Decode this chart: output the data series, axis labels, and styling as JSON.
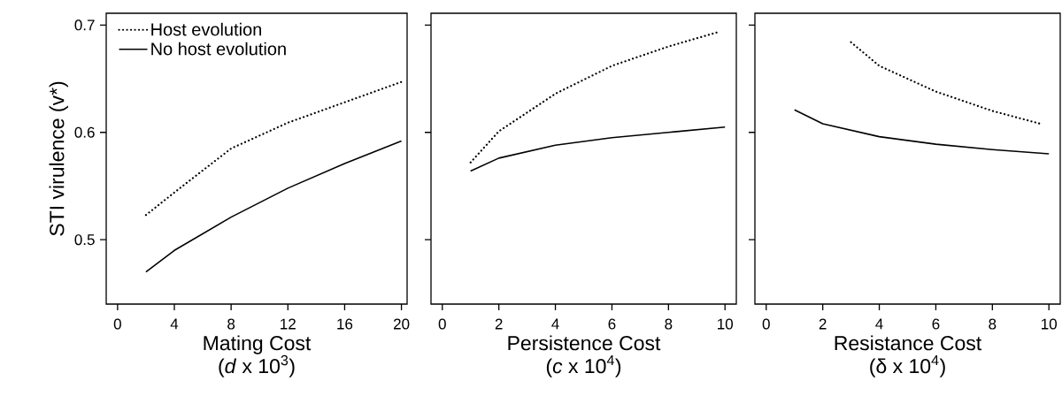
{
  "chart_data": [
    {
      "type": "line",
      "xlabel": "Mating Cost (*d* x 10$^{3}$)",
      "ylabel": "STI virulence (v*)",
      "xlim": [
        -0.8,
        20.4
      ],
      "ylim": [
        0.44,
        0.711
      ],
      "xticks": [
        0,
        4,
        8,
        12,
        16,
        20
      ],
      "yticks": [
        0.5,
        0.6,
        0.7
      ],
      "legend": "top left",
      "grid": false,
      "series": [
        {
          "name": "Host evolution",
          "color": "#000000",
          "line_style": "dotted",
          "x": [
            2,
            4,
            8,
            12,
            16,
            20
          ],
          "values": [
            0.523,
            0.544,
            0.585,
            0.609,
            0.628,
            0.647
          ]
        },
        {
          "name": "No host evolution",
          "color": "#000000",
          "line_style": "solid",
          "x": [
            2,
            4,
            8,
            12,
            16,
            20
          ],
          "values": [
            0.47,
            0.49,
            0.521,
            0.548,
            0.571,
            0.592
          ]
        }
      ]
    },
    {
      "type": "line",
      "xlabel": "Persistence Cost (*c* x 10$^{4}$)",
      "xlim": [
        -0.4,
        10.4
      ],
      "ylim": [
        0.44,
        0.711
      ],
      "xticks": [
        0,
        2,
        4,
        6,
        8,
        10
      ],
      "yticks": [
        {
          "value": 0.5,
          "label": null
        },
        {
          "value": 0.6,
          "label": null
        },
        {
          "value": 0.7,
          "label": null
        }
      ],
      "tick_labels": "x",
      "grid": false,
      "series": [
        {
          "color": "#000000",
          "line_style": "dotted",
          "x": [
            1,
            2,
            4,
            6,
            8,
            9.7
          ],
          "values": [
            0.572,
            0.601,
            0.636,
            0.662,
            0.68,
            0.693
          ]
        },
        {
          "color": "#000000",
          "line_style": "solid",
          "x": [
            1,
            2,
            4,
            6,
            8,
            10
          ],
          "values": [
            0.564,
            0.576,
            0.588,
            0.595,
            0.6,
            0.605
          ]
        }
      ]
    },
    {
      "type": "line",
      "xlabel": "Resistance Cost (δ x 10$^{4}$)",
      "xlim": [
        -0.4,
        10.4
      ],
      "ylim": [
        0.44,
        0.711
      ],
      "xticks": [
        0,
        2,
        4,
        6,
        8,
        10
      ],
      "yticks": [
        {
          "value": 0.5,
          "label": null
        },
        {
          "value": 0.6,
          "label": null
        },
        {
          "value": 0.7,
          "label": null
        }
      ],
      "tick_labels": "x",
      "grid": false,
      "series": [
        {
          "color": "#000000",
          "line_style": "dotted",
          "x": [
            3,
            4,
            6,
            8,
            9.7
          ],
          "values": [
            0.684,
            0.662,
            0.638,
            0.62,
            0.608
          ]
        },
        {
          "color": "#000000",
          "line_style": "solid",
          "x": [
            1,
            2,
            4,
            6,
            8,
            10
          ],
          "values": [
            0.621,
            0.608,
            0.596,
            0.589,
            0.584,
            0.58
          ]
        }
      ]
    }
  ]
}
